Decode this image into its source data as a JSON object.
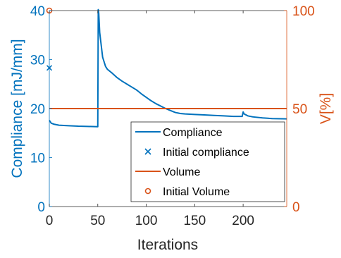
{
  "chart_data": {
    "type": "line",
    "title": "",
    "xlabel": "Iterations",
    "ylabel_left": "Compliance [mJ/mm]",
    "ylabel_right": "V[%]",
    "xlim": [
      0,
      245
    ],
    "ylim_left": [
      0,
      40
    ],
    "ylim_right": [
      0,
      100
    ],
    "xticks": [
      0,
      50,
      100,
      150,
      200
    ],
    "xtick_labels": [
      "0",
      "50",
      "100",
      "150",
      "200"
    ],
    "yticks_left": [
      0,
      10,
      20,
      30,
      40
    ],
    "ytick_labels_left": [
      "0",
      "10",
      "20",
      "30",
      "40"
    ],
    "yticks_right": [
      0,
      50,
      100
    ],
    "ytick_labels_right": [
      "0",
      "50",
      "100"
    ],
    "grid": false,
    "legend_position": "bottom-right",
    "series": [
      {
        "name": "Compliance",
        "axis": "left",
        "style": "line",
        "color": "#0072BD",
        "x": [
          0,
          2,
          5,
          10,
          20,
          30,
          40,
          50,
          50.5,
          51,
          52,
          55,
          58,
          60,
          65,
          70,
          75,
          80,
          85,
          90,
          95,
          100,
          105,
          110,
          115,
          120,
          125,
          130,
          135,
          140,
          150,
          160,
          170,
          180,
          190,
          199,
          200,
          201,
          205,
          210,
          220,
          230,
          245
        ],
        "y": [
          17.6,
          17.0,
          16.8,
          16.6,
          16.5,
          16.4,
          16.35,
          16.3,
          40.2,
          39.5,
          35.5,
          30.5,
          28.6,
          28.0,
          27.2,
          26.3,
          25.6,
          25.0,
          24.4,
          23.8,
          23.0,
          22.3,
          21.6,
          21.0,
          20.5,
          20.0,
          19.6,
          19.2,
          19.0,
          18.9,
          18.8,
          18.7,
          18.6,
          18.5,
          18.4,
          18.4,
          19.3,
          18.9,
          18.5,
          18.3,
          18.1,
          17.95,
          17.9
        ]
      },
      {
        "name": "Initial compliance",
        "axis": "left",
        "style": "marker",
        "marker": "x",
        "color": "#0072BD",
        "x": [
          0
        ],
        "y": [
          28.3
        ]
      },
      {
        "name": "Volume",
        "axis": "right",
        "style": "line",
        "color": "#D95319",
        "x": [
          0,
          245
        ],
        "y": [
          50,
          50
        ]
      },
      {
        "name": "Initial Volume",
        "axis": "right",
        "style": "marker",
        "marker": "o",
        "color": "#D95319",
        "x": [
          0
        ],
        "y": [
          100
        ]
      }
    ]
  }
}
